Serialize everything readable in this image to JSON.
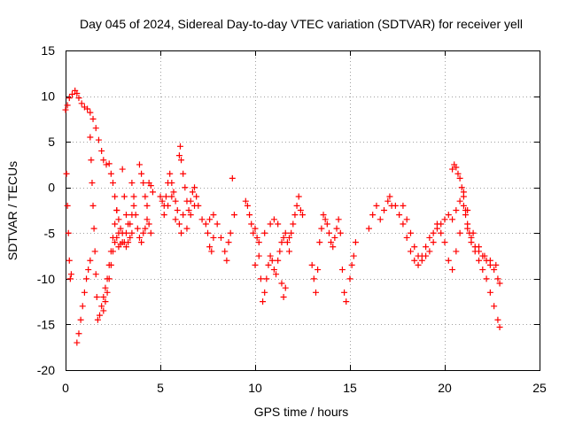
{
  "chart_data": {
    "type": "scatter",
    "title": "Day 045 of 2024, Sidereal Day-to-day VTEC variation (SDTVAR) for receiver yell",
    "xlabel": "GPS time / hours",
    "ylabel": "SDTVAR / TECUs",
    "xlim": [
      0,
      25
    ],
    "ylim": [
      -20,
      15
    ],
    "xticks": [
      "0",
      "5",
      "10",
      "15",
      "20",
      "25"
    ],
    "yticks": [
      "-20",
      "-15",
      "-10",
      "-5",
      "0",
      "5",
      "10",
      "15"
    ],
    "grid": true,
    "marker": "+",
    "series": [
      {
        "name": "SDTVAR",
        "color": "#ff0000",
        "points": [
          [
            0.0,
            8.5
          ],
          [
            0.1,
            9.0
          ],
          [
            0.2,
            9.8
          ],
          [
            0.35,
            10.2
          ],
          [
            0.5,
            10.6
          ],
          [
            0.6,
            10.3
          ],
          [
            0.7,
            9.8
          ],
          [
            0.85,
            9.2
          ],
          [
            1.0,
            8.8
          ],
          [
            1.15,
            8.6
          ],
          [
            1.3,
            8.2
          ],
          [
            1.45,
            7.5
          ],
          [
            1.6,
            6.5
          ],
          [
            1.75,
            5.2
          ],
          [
            1.9,
            4.0
          ],
          [
            2.0,
            3.0
          ],
          [
            2.15,
            2.5
          ],
          [
            2.3,
            2.6
          ],
          [
            0.05,
            1.5
          ],
          [
            0.1,
            -2.0
          ],
          [
            0.15,
            -5.0
          ],
          [
            0.2,
            -8.0
          ],
          [
            0.25,
            -10.0
          ],
          [
            0.3,
            -9.5
          ],
          [
            0.6,
            -17.0
          ],
          [
            0.7,
            -16.0
          ],
          [
            0.8,
            -14.5
          ],
          [
            0.9,
            -13.0
          ],
          [
            1.0,
            -11.5
          ],
          [
            1.1,
            -10.0
          ],
          [
            1.2,
            -9.0
          ],
          [
            1.3,
            -8.0
          ],
          [
            1.3,
            5.5
          ],
          [
            1.35,
            3.0
          ],
          [
            1.4,
            0.5
          ],
          [
            1.45,
            -2.0
          ],
          [
            1.5,
            -4.5
          ],
          [
            1.55,
            -7.0
          ],
          [
            1.6,
            -9.5
          ],
          [
            1.65,
            -12.0
          ],
          [
            1.7,
            -14.5
          ],
          [
            1.8,
            -14.0
          ],
          [
            1.9,
            -13.0
          ],
          [
            2.0,
            -12.0
          ],
          [
            2.1,
            -11.0
          ],
          [
            2.2,
            -10.0
          ],
          [
            2.3,
            -8.5
          ],
          [
            2.4,
            -7.0
          ],
          [
            2.5,
            -5.5
          ],
          [
            2.6,
            -4.0
          ],
          [
            2.7,
            -2.5
          ],
          [
            2.0,
            -13.5
          ],
          [
            2.1,
            -12.5
          ],
          [
            2.2,
            -11.5
          ],
          [
            2.3,
            -10.0
          ],
          [
            2.4,
            -8.5
          ],
          [
            2.5,
            -7.0
          ],
          [
            2.6,
            -6.0
          ],
          [
            2.7,
            -5.5
          ],
          [
            2.8,
            -5.0
          ],
          [
            2.4,
            1.5
          ],
          [
            2.5,
            0.5
          ],
          [
            2.6,
            -1.0
          ],
          [
            2.7,
            -2.5
          ],
          [
            2.8,
            -3.5
          ],
          [
            2.9,
            -4.5
          ],
          [
            3.0,
            -5.0
          ],
          [
            3.1,
            -6.0
          ],
          [
            3.2,
            -6.5
          ],
          [
            3.3,
            -6.0
          ],
          [
            3.4,
            -5.5
          ],
          [
            3.5,
            -5.0
          ],
          [
            2.8,
            -6.5
          ],
          [
            2.9,
            -6.2
          ],
          [
            3.0,
            -6.0
          ],
          [
            3.2,
            -5.0
          ],
          [
            3.4,
            -4.0
          ],
          [
            3.5,
            -3.0
          ],
          [
            3.6,
            -2.0
          ],
          [
            3.7,
            -3.0
          ],
          [
            3.8,
            -4.5
          ],
          [
            3.9,
            -5.5
          ],
          [
            4.0,
            -6.0
          ],
          [
            4.1,
            -5.0
          ],
          [
            4.2,
            -4.5
          ],
          [
            4.3,
            -3.5
          ],
          [
            4.4,
            -4.0
          ],
          [
            4.5,
            -5.0
          ],
          [
            3.0,
            2.0
          ],
          [
            3.1,
            -1.0
          ],
          [
            3.2,
            -3.0
          ],
          [
            3.3,
            -4.0
          ],
          [
            3.5,
            0.5
          ],
          [
            3.6,
            -1.0
          ],
          [
            3.9,
            2.5
          ],
          [
            4.0,
            1.5
          ],
          [
            4.1,
            0.5
          ],
          [
            4.2,
            -1.0
          ],
          [
            4.3,
            -2.0
          ],
          [
            4.4,
            0.5
          ],
          [
            4.5,
            0.2
          ],
          [
            4.6,
            -0.5
          ],
          [
            5.0,
            -1.0
          ],
          [
            5.1,
            -1.5
          ],
          [
            5.2,
            -2.0
          ],
          [
            5.3,
            -1.0
          ],
          [
            5.4,
            0.5
          ],
          [
            5.5,
            1.5
          ],
          [
            5.6,
            0.5
          ],
          [
            5.7,
            -0.5
          ],
          [
            5.8,
            -1.5
          ],
          [
            5.9,
            -2.5
          ],
          [
            6.0,
            3.5
          ],
          [
            6.05,
            4.5
          ],
          [
            6.1,
            3.0
          ],
          [
            6.2,
            1.5
          ],
          [
            6.3,
            0.0
          ],
          [
            6.4,
            -1.5
          ],
          [
            6.5,
            -2.5
          ],
          [
            6.6,
            -1.5
          ],
          [
            6.7,
            -0.5
          ],
          [
            6.8,
            0.0
          ],
          [
            6.9,
            -1.0
          ],
          [
            7.0,
            -2.0
          ],
          [
            5.2,
            -3.0
          ],
          [
            5.4,
            -2.0
          ],
          [
            5.6,
            -1.0
          ],
          [
            5.8,
            -3.5
          ],
          [
            6.0,
            -4.0
          ],
          [
            6.1,
            -5.0
          ],
          [
            6.2,
            -3.0
          ],
          [
            6.4,
            -4.5
          ],
          [
            6.6,
            -3.0
          ],
          [
            6.8,
            -2.0
          ],
          [
            7.2,
            -3.5
          ],
          [
            7.4,
            -4.0
          ],
          [
            7.6,
            -3.5
          ],
          [
            7.8,
            -3.0
          ],
          [
            8.0,
            -4.0
          ],
          [
            8.2,
            -5.5
          ],
          [
            8.4,
            -7.0
          ],
          [
            8.5,
            -8.0
          ],
          [
            8.6,
            -6.0
          ],
          [
            8.7,
            -5.0
          ],
          [
            8.8,
            1.0
          ],
          [
            8.9,
            -3.0
          ],
          [
            7.5,
            -5.0
          ],
          [
            7.6,
            -6.5
          ],
          [
            7.7,
            -7.0
          ],
          [
            7.8,
            -5.5
          ],
          [
            9.5,
            -1.5
          ],
          [
            9.6,
            -2.0
          ],
          [
            9.7,
            -3.0
          ],
          [
            9.8,
            -4.0
          ],
          [
            9.9,
            -5.0
          ],
          [
            10.0,
            -4.5
          ],
          [
            10.1,
            -5.5
          ],
          [
            10.2,
            -6.0
          ],
          [
            10.3,
            -10.0
          ],
          [
            10.4,
            -12.5
          ],
          [
            10.5,
            -11.5
          ],
          [
            10.6,
            -10.0
          ],
          [
            10.7,
            -8.5
          ],
          [
            10.8,
            -7.5
          ],
          [
            10.9,
            -8.0
          ],
          [
            11.0,
            -9.0
          ],
          [
            11.1,
            -9.5
          ],
          [
            11.2,
            -8.0
          ],
          [
            11.3,
            -7.0
          ],
          [
            11.4,
            -6.0
          ],
          [
            11.5,
            -5.5
          ],
          [
            11.6,
            -5.0
          ],
          [
            11.7,
            -6.0
          ],
          [
            11.8,
            -5.5
          ],
          [
            11.9,
            -5.0
          ],
          [
            12.0,
            -4.0
          ],
          [
            12.1,
            -3.0
          ],
          [
            12.2,
            -2.0
          ],
          [
            12.3,
            -1.0
          ],
          [
            12.4,
            -2.5
          ],
          [
            12.5,
            -3.0
          ],
          [
            10.0,
            -8.5
          ],
          [
            10.2,
            -7.5
          ],
          [
            10.5,
            -5.0
          ],
          [
            10.8,
            -4.0
          ],
          [
            11.0,
            -3.5
          ],
          [
            11.2,
            -4.0
          ],
          [
            11.4,
            -10.5
          ],
          [
            11.5,
            -12.0
          ],
          [
            11.6,
            -11.0
          ],
          [
            11.8,
            -7.0
          ],
          [
            13.0,
            -8.5
          ],
          [
            13.1,
            -10.0
          ],
          [
            13.2,
            -11.5
          ],
          [
            13.3,
            -9.0
          ],
          [
            13.4,
            -6.0
          ],
          [
            13.5,
            -4.5
          ],
          [
            13.6,
            -3.0
          ],
          [
            13.7,
            -3.5
          ],
          [
            13.8,
            -4.0
          ],
          [
            13.9,
            -5.0
          ],
          [
            14.0,
            -6.0
          ],
          [
            14.1,
            -6.5
          ],
          [
            14.2,
            -5.5
          ],
          [
            14.3,
            -4.5
          ],
          [
            14.4,
            -3.5
          ],
          [
            14.5,
            -5.0
          ],
          [
            14.6,
            -9.0
          ],
          [
            14.7,
            -11.5
          ],
          [
            14.8,
            -12.5
          ],
          [
            15.0,
            -10.0
          ],
          [
            15.1,
            -8.5
          ],
          [
            15.2,
            -7.5
          ],
          [
            15.3,
            -6.0
          ],
          [
            16.0,
            -4.5
          ],
          [
            16.2,
            -3.0
          ],
          [
            16.4,
            -2.0
          ],
          [
            16.6,
            -3.5
          ],
          [
            16.8,
            -2.5
          ],
          [
            17.0,
            -1.5
          ],
          [
            17.1,
            -1.0
          ],
          [
            17.2,
            -2.0
          ],
          [
            17.4,
            -2.0
          ],
          [
            17.6,
            -3.0
          ],
          [
            17.8,
            -4.0
          ],
          [
            18.0,
            -5.5
          ],
          [
            18.2,
            -7.0
          ],
          [
            18.4,
            -8.0
          ],
          [
            18.6,
            -8.5
          ],
          [
            18.8,
            -7.5
          ],
          [
            19.0,
            -6.5
          ],
          [
            19.2,
            -5.5
          ],
          [
            19.4,
            -5.0
          ],
          [
            19.6,
            -4.5
          ],
          [
            19.8,
            -4.0
          ],
          [
            20.0,
            -3.5
          ],
          [
            20.2,
            -3.0
          ],
          [
            20.4,
            -3.5
          ],
          [
            20.6,
            -2.5
          ],
          [
            20.8,
            -1.5
          ],
          [
            21.0,
            -2.0
          ],
          [
            21.1,
            -3.0
          ],
          [
            21.2,
            -4.5
          ],
          [
            21.4,
            -5.5
          ],
          [
            21.6,
            -6.5
          ],
          [
            21.8,
            -7.0
          ],
          [
            22.0,
            -7.5
          ],
          [
            22.2,
            -8.0
          ],
          [
            22.4,
            -8.5
          ],
          [
            22.6,
            -9.0
          ],
          [
            22.8,
            -10.0
          ],
          [
            17.8,
            -2.0
          ],
          [
            18.0,
            -3.5
          ],
          [
            18.2,
            -5.0
          ],
          [
            18.4,
            -6.5
          ],
          [
            18.6,
            -7.5
          ],
          [
            18.8,
            -8.0
          ],
          [
            19.0,
            -7.5
          ],
          [
            19.2,
            -7.0
          ],
          [
            19.4,
            -6.0
          ],
          [
            19.6,
            -4.0
          ],
          [
            19.8,
            -5.0
          ],
          [
            20.0,
            -6.0
          ],
          [
            20.2,
            -8.0
          ],
          [
            20.4,
            -9.0
          ],
          [
            20.6,
            -7.0
          ],
          [
            20.8,
            -5.0
          ],
          [
            20.4,
            2.0
          ],
          [
            20.5,
            2.5
          ],
          [
            20.6,
            2.2
          ],
          [
            20.7,
            1.5
          ],
          [
            20.8,
            1.0
          ],
          [
            20.9,
            0.0
          ],
          [
            21.0,
            -1.0
          ],
          [
            21.1,
            -2.5
          ],
          [
            21.2,
            -4.0
          ],
          [
            21.3,
            -5.0
          ],
          [
            21.4,
            -6.0
          ],
          [
            21.6,
            -7.0
          ],
          [
            21.8,
            -8.0
          ],
          [
            22.0,
            -9.0
          ],
          [
            22.2,
            -10.0
          ],
          [
            22.4,
            -11.5
          ],
          [
            22.6,
            -13.0
          ],
          [
            22.8,
            -14.5
          ],
          [
            22.9,
            -15.3
          ],
          [
            21.0,
            -0.5
          ],
          [
            21.2,
            -2.5
          ],
          [
            21.5,
            -5.0
          ],
          [
            21.8,
            -6.5
          ],
          [
            22.1,
            -7.5
          ],
          [
            22.4,
            -8.0
          ],
          [
            22.7,
            -8.5
          ],
          [
            22.9,
            -10.5
          ]
        ]
      }
    ]
  }
}
